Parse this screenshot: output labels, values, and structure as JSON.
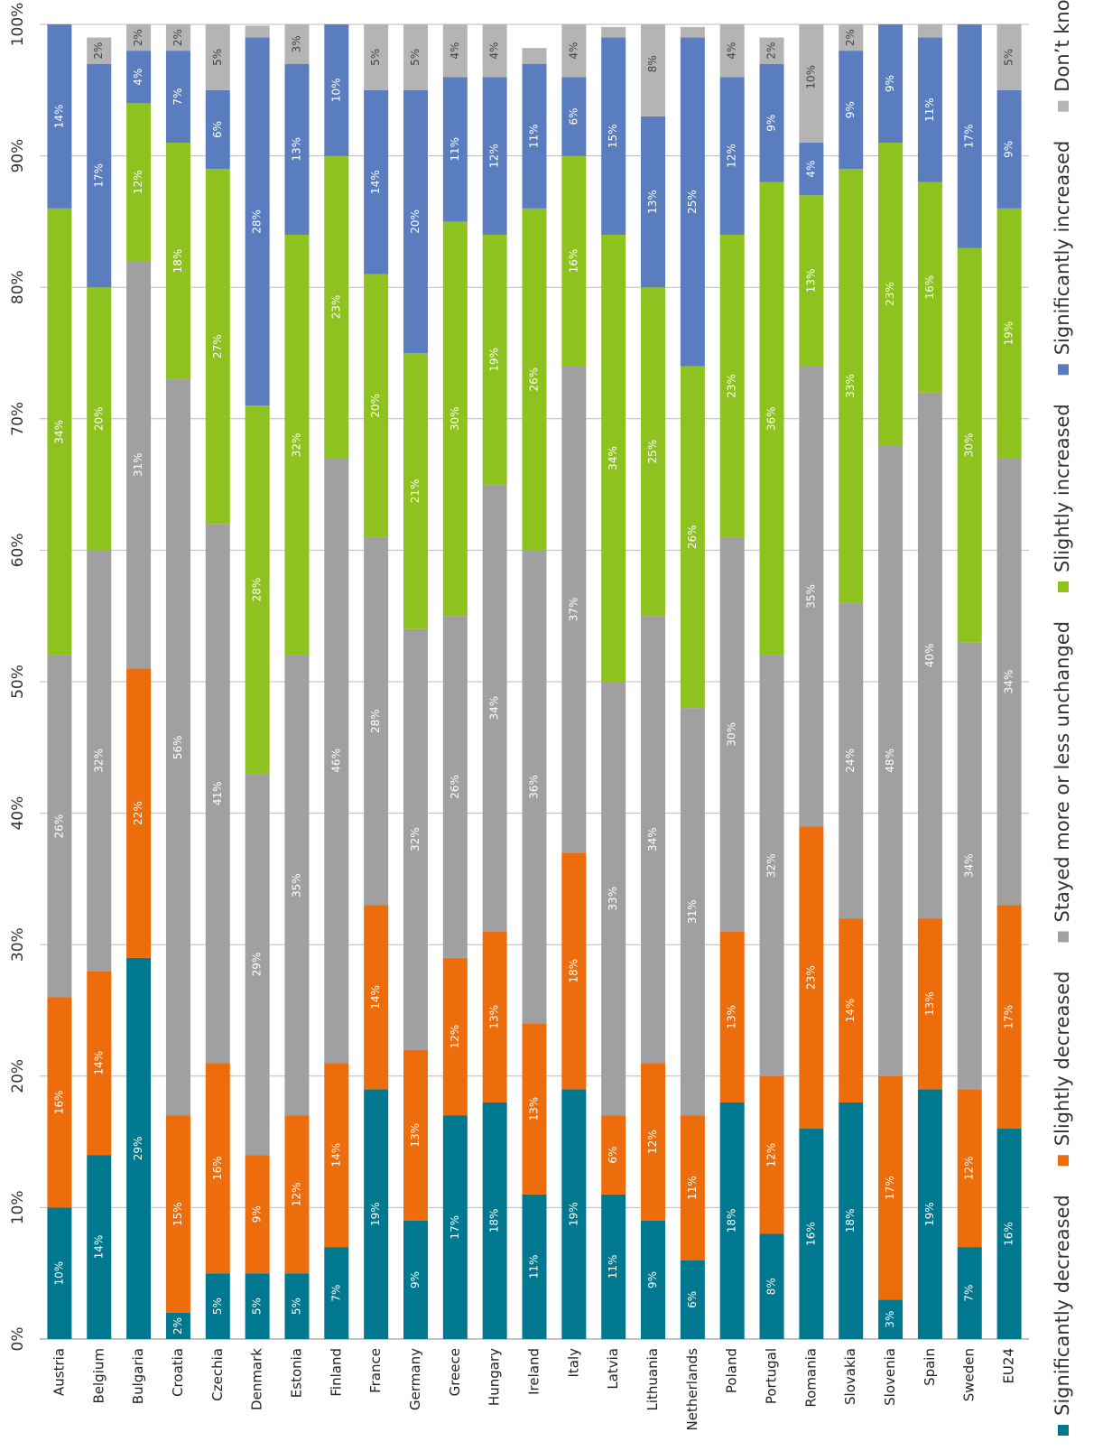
{
  "chart_data": {
    "type": "stacked_bar",
    "categories": [
      "Austria",
      "Belgium",
      "Bulgaria",
      "Croatia",
      "Czechia",
      "Denmark",
      "Estonia",
      "Finland",
      "France",
      "Germany",
      "Greece",
      "Hungary",
      "Ireland",
      "Italy",
      "Latvia",
      "Lithuania",
      "Netherlands",
      "Poland",
      "Portugal",
      "Romania",
      "Slovakia",
      "Slovenia",
      "Spain",
      "Sweden",
      "EU24"
    ],
    "series": [
      {
        "name": "Significantly decreased",
        "color": "#00788f",
        "values": [
          10,
          14,
          29,
          2,
          5,
          5,
          5,
          7,
          19,
          9,
          17,
          18,
          11,
          19,
          11,
          9,
          6,
          18,
          8,
          16,
          18,
          3,
          19,
          7,
          16
        ],
        "value_labels": [
          "10%",
          "14%",
          "29%",
          "2%",
          "5%",
          "5%",
          "5%",
          "7%",
          "19%",
          "9%",
          "17%",
          "18%",
          "11%",
          "19%",
          "11%",
          "9%",
          "6%",
          "18%",
          "8%",
          "16%",
          "18%",
          "3%",
          "19%",
          "7%",
          "16%"
        ]
      },
      {
        "name": "Slightly decreased",
        "color": "#ed6c0c",
        "values": [
          16,
          14,
          22,
          15,
          16,
          9,
          12,
          14,
          14,
          13,
          12,
          13,
          13,
          18,
          6,
          12,
          11,
          13,
          12,
          23,
          14,
          17,
          13,
          12,
          17
        ],
        "value_labels": [
          "16%",
          "14%",
          "22%",
          "15%",
          "16%",
          "9%",
          "12%",
          "14%",
          "14%",
          "13%",
          "12%",
          "13%",
          "13%",
          "18%",
          "6%",
          "12%",
          "11%",
          "13%",
          "12%",
          "23%",
          "14%",
          "17%",
          "13%",
          "12%",
          "17%"
        ]
      },
      {
        "name": "Stayed more or less unchanged",
        "color": "#a0a0a0",
        "values": [
          26,
          32,
          31,
          56,
          41,
          29,
          35,
          46,
          28,
          32,
          26,
          34,
          36,
          37,
          33,
          34,
          31,
          30,
          32,
          35,
          24,
          48,
          40,
          34,
          34
        ],
        "value_labels": [
          "26%",
          "32%",
          "31%",
          "56%",
          "41%",
          "29%",
          "35%",
          "46%",
          "28%",
          "32%",
          "26%",
          "34%",
          "36%",
          "37%",
          "33%",
          "34%",
          "31%",
          "30%",
          "32%",
          "35%",
          "24%",
          "48%",
          "40%",
          "34%",
          "34%"
        ]
      },
      {
        "name": "Slightly increased",
        "color": "#8dc21f",
        "values": [
          34,
          20,
          12,
          18,
          27,
          28,
          32,
          23,
          20,
          21,
          30,
          19,
          26,
          16,
          34,
          25,
          26,
          23,
          36,
          13,
          33,
          23,
          16,
          30,
          19
        ],
        "value_labels": [
          "34%",
          "20%",
          "12%",
          "18%",
          "27%",
          "28%",
          "32%",
          "23%",
          "20%",
          "21%",
          "30%",
          "19%",
          "26%",
          "16%",
          "34%",
          "25%",
          "26%",
          "23%",
          "36%",
          "13%",
          "33%",
          "23%",
          "16%",
          "30%",
          "19%"
        ]
      },
      {
        "name": "Significantly increased",
        "color": "#5a7dc0",
        "values": [
          14,
          17,
          4,
          7,
          6,
          28,
          13,
          10,
          14,
          20,
          11,
          12,
          11,
          6,
          15,
          13,
          25,
          12,
          9,
          4,
          9,
          9,
          11,
          17,
          9
        ],
        "value_labels": [
          "14%",
          "17%",
          "4%",
          "7%",
          "6%",
          "28%",
          "13%",
          "10%",
          "14%",
          "20%",
          "11%",
          "12%",
          "11%",
          "6%",
          "15%",
          "13%",
          "25%",
          "12%",
          "9%",
          "4%",
          "9%",
          "9%",
          "11%",
          "17%",
          "9%"
        ]
      },
      {
        "name": "Don’t know",
        "color": "#b4b4b4",
        "values": [
          0.6,
          2,
          2,
          2,
          5,
          0.9,
          3,
          0.7,
          5,
          5,
          4,
          4,
          1.2,
          4,
          0.8,
          8,
          0.8,
          4,
          2,
          10,
          2,
          0.3,
          1,
          1,
          5
        ],
        "value_labels": [
          null,
          "2%",
          "2%",
          "2%",
          "5%",
          null,
          "3%",
          null,
          "5%",
          "5%",
          "4%",
          "4%",
          null,
          "4%",
          null,
          "8%",
          null,
          "4%",
          "2%",
          "10%",
          "2%",
          null,
          null,
          null,
          "5%"
        ]
      }
    ],
    "ylim": [
      0,
      100
    ],
    "yticks": [
      {
        "value": 0,
        "label": "0%"
      },
      {
        "value": 10,
        "label": "10%"
      },
      {
        "value": 20,
        "label": "20%"
      },
      {
        "value": 30,
        "label": "30%"
      },
      {
        "value": 40,
        "label": "40%"
      },
      {
        "value": 50,
        "label": "50%"
      },
      {
        "value": 60,
        "label": "60%"
      },
      {
        "value": 70,
        "label": "70%"
      },
      {
        "value": 80,
        "label": "80%"
      },
      {
        "value": 90,
        "label": "90%"
      },
      {
        "value": 100,
        "label": "100%"
      }
    ],
    "grid": true
  }
}
